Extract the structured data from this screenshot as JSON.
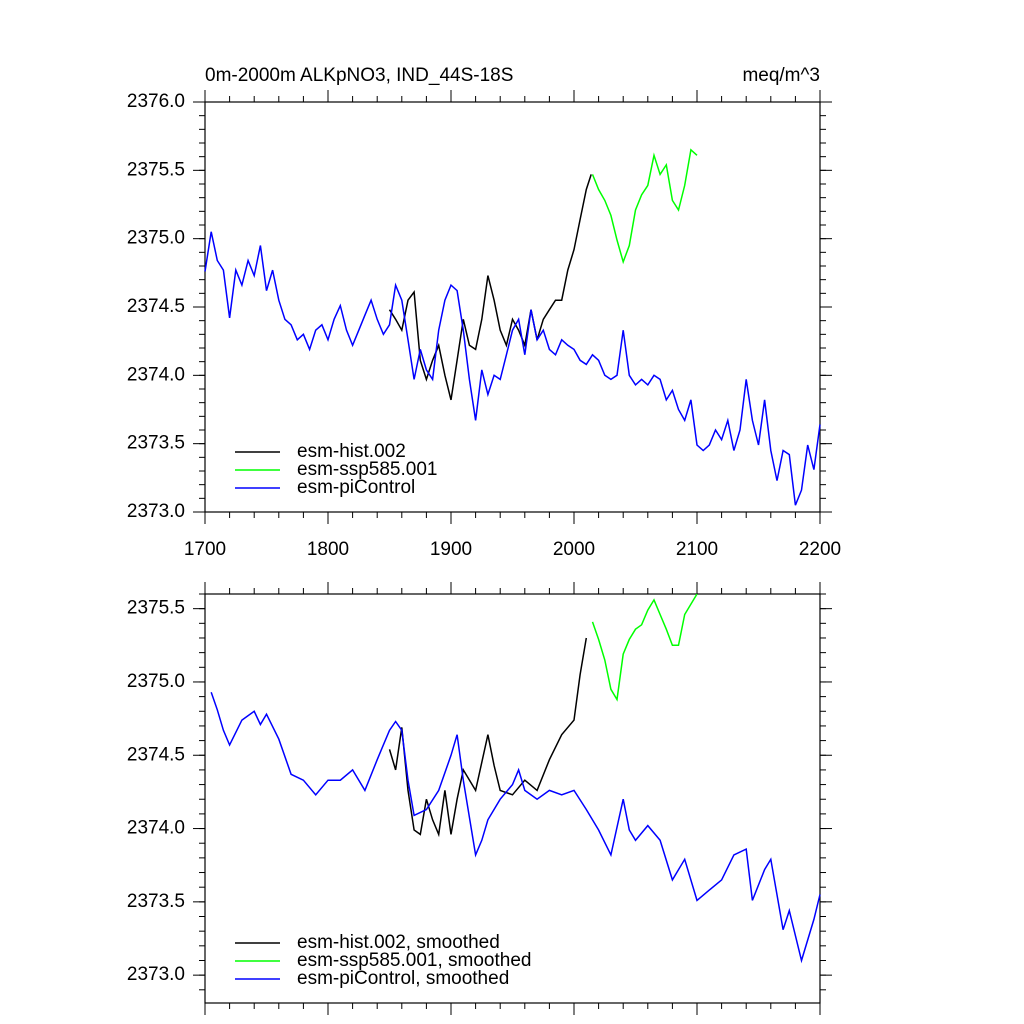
{
  "chart_data": [
    {
      "type": "line",
      "title": "0m-2000m ALKpNO3, IND_44S-18S",
      "units_label": "meq/m^3",
      "xlim": [
        1700,
        2200
      ],
      "xticks": [
        1700,
        1800,
        1900,
        2000,
        2100,
        2200
      ],
      "ylim": [
        2373.0,
        2376.0
      ],
      "yticks": [
        {
          "value": 2373.0,
          "label": "2373.0"
        },
        {
          "value": 2373.5,
          "label": "2373.5"
        },
        {
          "value": 2374.0,
          "label": "2374.0"
        },
        {
          "value": 2374.5,
          "label": "2374.5"
        },
        {
          "value": 2375.0,
          "label": "2375.0"
        },
        {
          "value": 2375.5,
          "label": "2375.5"
        },
        {
          "value": 2376.0,
          "label": "2376.0"
        }
      ],
      "legend": "lower left",
      "series": [
        {
          "name": "esm-hist.002",
          "color": "#000000",
          "x": [
            1850,
            1855,
            1860,
            1865,
            1870,
            1875,
            1880,
            1885,
            1890,
            1895,
            1900,
            1905,
            1910,
            1915,
            1920,
            1925,
            1930,
            1935,
            1940,
            1945,
            1950,
            1955,
            1960,
            1965,
            1970,
            1975,
            1980,
            1985,
            1990,
            1995,
            2000,
            2005,
            2010,
            2014
          ],
          "values": [
            2374.48,
            2374.41,
            2374.33,
            2374.55,
            2374.61,
            2374.11,
            2373.97,
            2374.11,
            2374.22,
            2374.0,
            2373.82,
            2374.11,
            2374.41,
            2374.22,
            2374.19,
            2374.41,
            2374.73,
            2374.55,
            2374.33,
            2374.22,
            2374.41,
            2374.33,
            2374.22,
            2374.48,
            2374.26,
            2374.41,
            2374.48,
            2374.55,
            2374.55,
            2374.77,
            2374.92,
            2375.14,
            2375.36,
            2375.47
          ]
        },
        {
          "name": "esm-ssp585.001",
          "color": "#00ff00",
          "x": [
            2015,
            2020,
            2025,
            2030,
            2035,
            2040,
            2045,
            2050,
            2055,
            2060,
            2065,
            2070,
            2075,
            2080,
            2085,
            2090,
            2095,
            2100
          ],
          "values": [
            2375.47,
            2375.36,
            2375.28,
            2375.17,
            2374.99,
            2374.83,
            2374.95,
            2375.21,
            2375.32,
            2375.39,
            2375.61,
            2375.47,
            2375.54,
            2375.28,
            2375.21,
            2375.39,
            2375.65,
            2375.61
          ]
        },
        {
          "name": "esm-piControl",
          "color": "#0000ff",
          "x": [
            1700,
            1705,
            1710,
            1715,
            1720,
            1725,
            1730,
            1735,
            1740,
            1745,
            1750,
            1755,
            1760,
            1765,
            1770,
            1775,
            1780,
            1785,
            1790,
            1795,
            1800,
            1805,
            1810,
            1815,
            1820,
            1825,
            1830,
            1835,
            1840,
            1845,
            1850,
            1855,
            1860,
            1865,
            1870,
            1875,
            1880,
            1885,
            1890,
            1895,
            1900,
            1905,
            1910,
            1915,
            1920,
            1925,
            1930,
            1935,
            1940,
            1945,
            1950,
            1955,
            1960,
            1965,
            1970,
            1975,
            1980,
            1985,
            1990,
            1995,
            2000,
            2005,
            2010,
            2015,
            2020,
            2025,
            2030,
            2035,
            2040,
            2045,
            2050,
            2055,
            2060,
            2065,
            2070,
            2075,
            2080,
            2085,
            2090,
            2095,
            2100,
            2105,
            2110,
            2115,
            2120,
            2125,
            2130,
            2135,
            2140,
            2145,
            2150,
            2155,
            2160,
            2165,
            2170,
            2175,
            2180,
            2185,
            2190,
            2195,
            2200
          ],
          "values": [
            2374.76,
            2375.05,
            2374.84,
            2374.77,
            2374.42,
            2374.77,
            2374.66,
            2374.84,
            2374.73,
            2374.95,
            2374.62,
            2374.77,
            2374.55,
            2374.41,
            2374.37,
            2374.26,
            2374.3,
            2374.19,
            2374.33,
            2374.37,
            2374.26,
            2374.41,
            2374.51,
            2374.33,
            2374.22,
            2374.33,
            2374.44,
            2374.55,
            2374.41,
            2374.3,
            2374.37,
            2374.66,
            2374.55,
            2374.26,
            2373.97,
            2374.19,
            2374.04,
            2373.97,
            2374.33,
            2374.55,
            2374.66,
            2374.62,
            2374.33,
            2373.97,
            2373.67,
            2374.04,
            2373.86,
            2374.0,
            2373.97,
            2374.15,
            2374.33,
            2374.41,
            2374.15,
            2374.48,
            2374.26,
            2374.33,
            2374.19,
            2374.15,
            2374.26,
            2374.22,
            2374.19,
            2374.11,
            2374.08,
            2374.15,
            2374.11,
            2374.0,
            2373.97,
            2374.0,
            2374.33,
            2374.0,
            2373.93,
            2373.97,
            2373.93,
            2374.0,
            2373.97,
            2373.82,
            2373.89,
            2373.75,
            2373.67,
            2373.82,
            2373.49,
            2373.45,
            2373.49,
            2373.6,
            2373.53,
            2373.67,
            2373.45,
            2373.6,
            2373.97,
            2373.67,
            2373.49,
            2373.82,
            2373.45,
            2373.23,
            2373.45,
            2373.42,
            2373.05,
            2373.16,
            2373.49,
            2373.31,
            2373.64
          ]
        }
      ]
    },
    {
      "type": "line",
      "xlim": [
        1700,
        2200
      ],
      "ylim": [
        2372.81,
        2375.6
      ],
      "yticks": [
        {
          "value": 2373.0,
          "label": "2373.0"
        },
        {
          "value": 2373.5,
          "label": "2373.5"
        },
        {
          "value": 2374.0,
          "label": "2374.0"
        },
        {
          "value": 2374.5,
          "label": "2374.5"
        },
        {
          "value": 2375.0,
          "label": "2375.0"
        },
        {
          "value": 2375.5,
          "label": "2375.5"
        }
      ],
      "legend": "lower left",
      "series": [
        {
          "name": "esm-hist.002, smoothed",
          "color": "#000000",
          "x": [
            1850,
            1855,
            1860,
            1865,
            1870,
            1875,
            1880,
            1885,
            1890,
            1895,
            1900,
            1905,
            1910,
            1920,
            1930,
            1935,
            1940,
            1950,
            1960,
            1970,
            1980,
            1990,
            2000,
            2005,
            2010
          ],
          "values": [
            2374.54,
            2374.4,
            2374.69,
            2374.26,
            2373.99,
            2373.96,
            2374.2,
            2374.06,
            2373.96,
            2374.26,
            2373.96,
            2374.2,
            2374.4,
            2374.26,
            2374.64,
            2374.43,
            2374.26,
            2374.23,
            2374.33,
            2374.26,
            2374.47,
            2374.64,
            2374.74,
            2375.05,
            2375.3
          ]
        },
        {
          "name": "esm-ssp585.001, smoothed",
          "color": "#00ff00",
          "x": [
            2015,
            2020,
            2025,
            2030,
            2035,
            2040,
            2045,
            2050,
            2055,
            2060,
            2065,
            2070,
            2075,
            2080,
            2085,
            2090,
            2100
          ],
          "values": [
            2375.41,
            2375.29,
            2375.15,
            2374.95,
            2374.88,
            2375.19,
            2375.29,
            2375.36,
            2375.39,
            2375.49,
            2375.56,
            2375.46,
            2375.36,
            2375.25,
            2375.25,
            2375.46,
            2375.6
          ]
        },
        {
          "name": "esm-piControl, smoothed",
          "color": "#0000ff",
          "x": [
            1705,
            1710,
            1715,
            1720,
            1730,
            1740,
            1745,
            1750,
            1760,
            1770,
            1780,
            1790,
            1800,
            1810,
            1820,
            1830,
            1840,
            1850,
            1855,
            1860,
            1865,
            1870,
            1880,
            1890,
            1900,
            1905,
            1910,
            1920,
            1925,
            1930,
            1940,
            1950,
            1955,
            1960,
            1970,
            1980,
            1990,
            2000,
            2010,
            2020,
            2030,
            2040,
            2045,
            2050,
            2060,
            2070,
            2080,
            2090,
            2100,
            2110,
            2120,
            2130,
            2140,
            2145,
            2155,
            2160,
            2170,
            2175,
            2185,
            2195,
            2200
          ],
          "values": [
            2374.93,
            2374.81,
            2374.67,
            2374.57,
            2374.74,
            2374.8,
            2374.71,
            2374.78,
            2374.61,
            2374.37,
            2374.33,
            2374.23,
            2374.33,
            2374.33,
            2374.4,
            2374.26,
            2374.47,
            2374.67,
            2374.73,
            2374.67,
            2374.33,
            2374.09,
            2374.13,
            2374.26,
            2374.5,
            2374.64,
            2374.33,
            2373.82,
            2373.92,
            2374.06,
            2374.2,
            2374.3,
            2374.4,
            2374.26,
            2374.2,
            2374.26,
            2374.23,
            2374.26,
            2374.13,
            2373.99,
            2373.82,
            2374.2,
            2373.99,
            2373.92,
            2374.02,
            2373.92,
            2373.65,
            2373.79,
            2373.51,
            2373.58,
            2373.65,
            2373.82,
            2373.86,
            2373.51,
            2373.72,
            2373.79,
            2373.31,
            2373.44,
            2373.1,
            2373.38,
            2373.55
          ]
        }
      ]
    }
  ]
}
